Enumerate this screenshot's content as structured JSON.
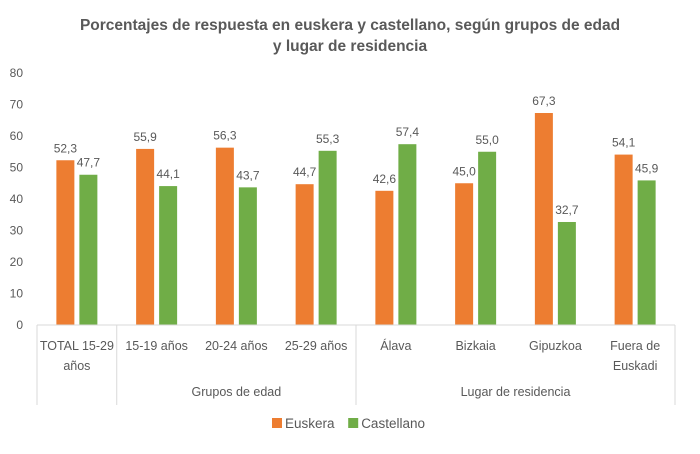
{
  "chart_data": {
    "type": "bar",
    "title_lines": [
      "Porcentajes de respuesta en euskera y castellano, según grupos de edad",
      "y lugar de residencia"
    ],
    "categories": [
      [
        "TOTAL 15-29",
        "años"
      ],
      [
        "15-19 años"
      ],
      [
        "20-24 años"
      ],
      [
        "25-29 años"
      ],
      [
        "Álava"
      ],
      [
        "Bizkaia"
      ],
      [
        "Gipuzkoa"
      ],
      [
        "Fuera de",
        "Euskadi"
      ]
    ],
    "groups": [
      {
        "label": "",
        "categories": [
          0
        ]
      },
      {
        "label": "Grupos de edad",
        "categories": [
          1,
          2,
          3
        ]
      },
      {
        "label": "Lugar de residencia",
        "categories": [
          4,
          5,
          6,
          7
        ]
      }
    ],
    "series": [
      {
        "name": "Euskera",
        "color": "#ED7D31",
        "values": [
          52.3,
          55.9,
          56.3,
          44.7,
          42.6,
          45.0,
          67.3,
          54.1
        ],
        "labels": [
          "52,3",
          "55,9",
          "56,3",
          "44,7",
          "42,6",
          "45,0",
          "67,3",
          "54,1"
        ]
      },
      {
        "name": "Castellano",
        "color": "#70AD47",
        "values": [
          47.7,
          44.1,
          43.7,
          55.3,
          57.4,
          55.0,
          32.7,
          45.9
        ],
        "labels": [
          "47,7",
          "44,1",
          "43,7",
          "55,3",
          "57,4",
          "55,0",
          "32,7",
          "45,9"
        ]
      }
    ],
    "ylim": [
      0,
      80
    ],
    "yticks": [
      0,
      10,
      20,
      30,
      40,
      50,
      60,
      70,
      80
    ],
    "grid": false,
    "legend": "bottom"
  }
}
